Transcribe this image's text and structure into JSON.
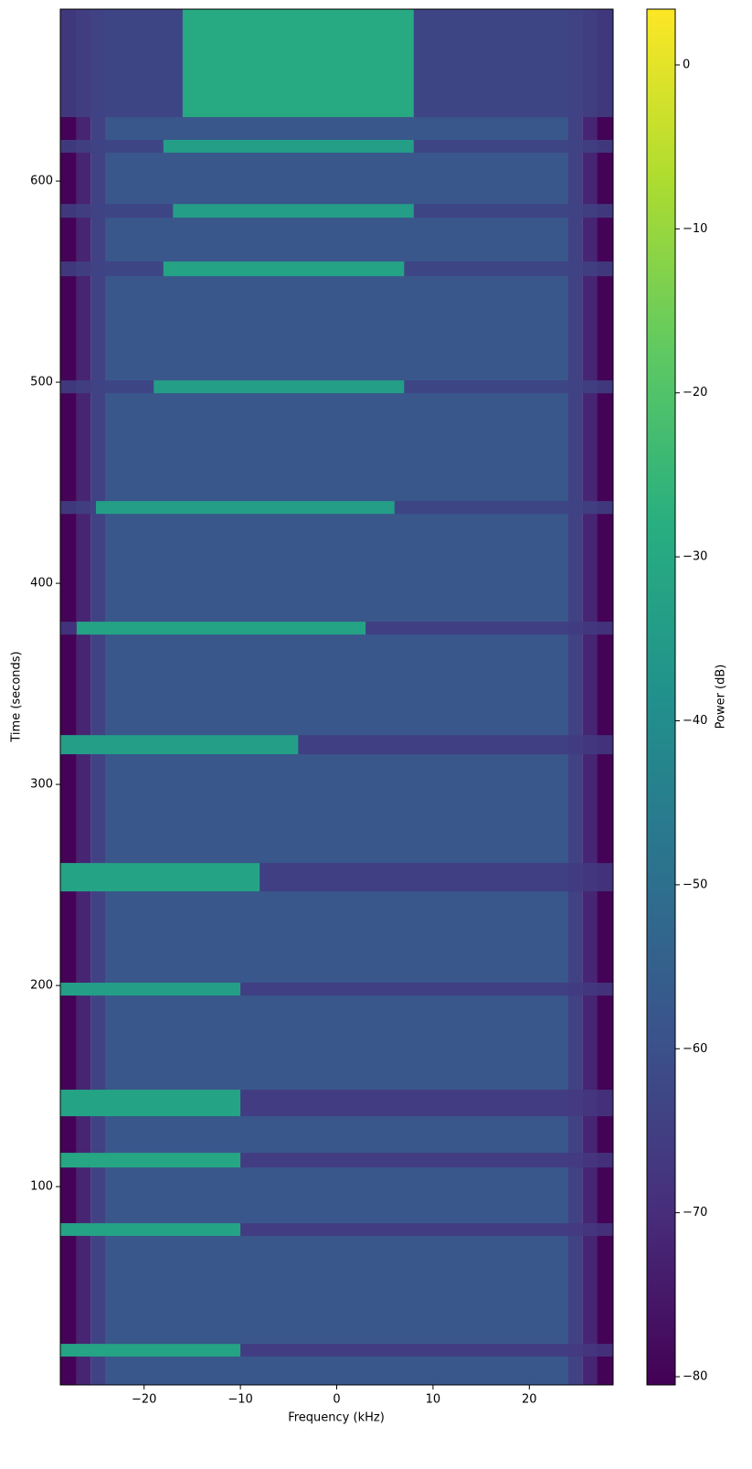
{
  "chart_data": {
    "type": "spectrogram",
    "x_label": "Frequency (kHz)",
    "y_label": "Time (seconds)",
    "colorbar_label": "Power (dB)",
    "colormap": "viridis",
    "xlim": [
      -28.7,
      28.7
    ],
    "ylim": [
      1.4,
      685.5
    ],
    "clim": [
      -80.5,
      3.4
    ],
    "xticks": [
      {
        "value": -20,
        "label": "−20"
      },
      {
        "value": -10,
        "label": "−10"
      },
      0,
      10,
      20
    ],
    "yticks": [
      100,
      200,
      300,
      400,
      500,
      600
    ],
    "cticks": [
      0,
      {
        "value": -10,
        "label": "−10"
      },
      {
        "value": -20,
        "label": "−20"
      },
      {
        "value": -30,
        "label": "−30"
      },
      {
        "value": -40,
        "label": "−40"
      },
      {
        "value": -50,
        "label": "−50"
      },
      {
        "value": -60,
        "label": "−60"
      },
      {
        "value": -70,
        "label": "−70"
      },
      {
        "value": -80,
        "label": "−80"
      }
    ],
    "background": {
      "bins": [
        -28.7,
        -27,
        -25.5,
        -24,
        24,
        25.5,
        27,
        28.7
      ],
      "values": [
        -80,
        -72,
        -64,
        -58,
        -64,
        -72,
        -80
      ]
    },
    "bursts": [
      {
        "time": [
          631.8,
          685.5
        ],
        "band": [
          -16,
          8
        ],
        "power": -30,
        "floor": -64
      },
      {
        "time": [
          614.1,
          620.5
        ],
        "band": [
          -18,
          8
        ],
        "power": -34,
        "floor": -64
      },
      {
        "time": [
          581.8,
          588.6
        ],
        "band": [
          -17,
          8
        ],
        "power": -34,
        "floor": -64
      },
      {
        "time": [
          552.7,
          560
        ],
        "band": [
          -18,
          7
        ],
        "power": -32,
        "floor": -64
      },
      {
        "time": [
          494.5,
          500.9
        ],
        "band": [
          -19,
          7
        ],
        "power": -34,
        "floor": -64
      },
      {
        "time": [
          434.5,
          440.9
        ],
        "band": [
          -25,
          6
        ],
        "power": -34,
        "floor": -64
      },
      {
        "time": [
          374.5,
          380.9
        ],
        "band": [
          -27,
          3
        ],
        "power": -32,
        "floor": -66
      },
      {
        "time": [
          315,
          324.5
        ],
        "band": [
          -28.7,
          -4
        ],
        "power": -34,
        "floor": -66
      },
      {
        "time": [
          246.8,
          260.9
        ],
        "band": [
          -28.7,
          -8
        ],
        "power": -32,
        "floor": -66
      },
      {
        "time": [
          195,
          201.4
        ],
        "band": [
          -28.7,
          -10
        ],
        "power": -34,
        "floor": -66
      },
      {
        "time": [
          135,
          148.2
        ],
        "band": [
          -28.7,
          -10
        ],
        "power": -32,
        "floor": -67
      },
      {
        "time": [
          109.5,
          116.8
        ],
        "band": [
          -28.7,
          -10
        ],
        "power": -31,
        "floor": -67
      },
      {
        "time": [
          75.5,
          81.8
        ],
        "band": [
          -28.7,
          -10
        ],
        "power": -32,
        "floor": -67
      },
      {
        "time": [
          15.5,
          21.8
        ],
        "band": [
          -28.7,
          -10
        ],
        "power": -32,
        "floor": -67
      }
    ]
  }
}
